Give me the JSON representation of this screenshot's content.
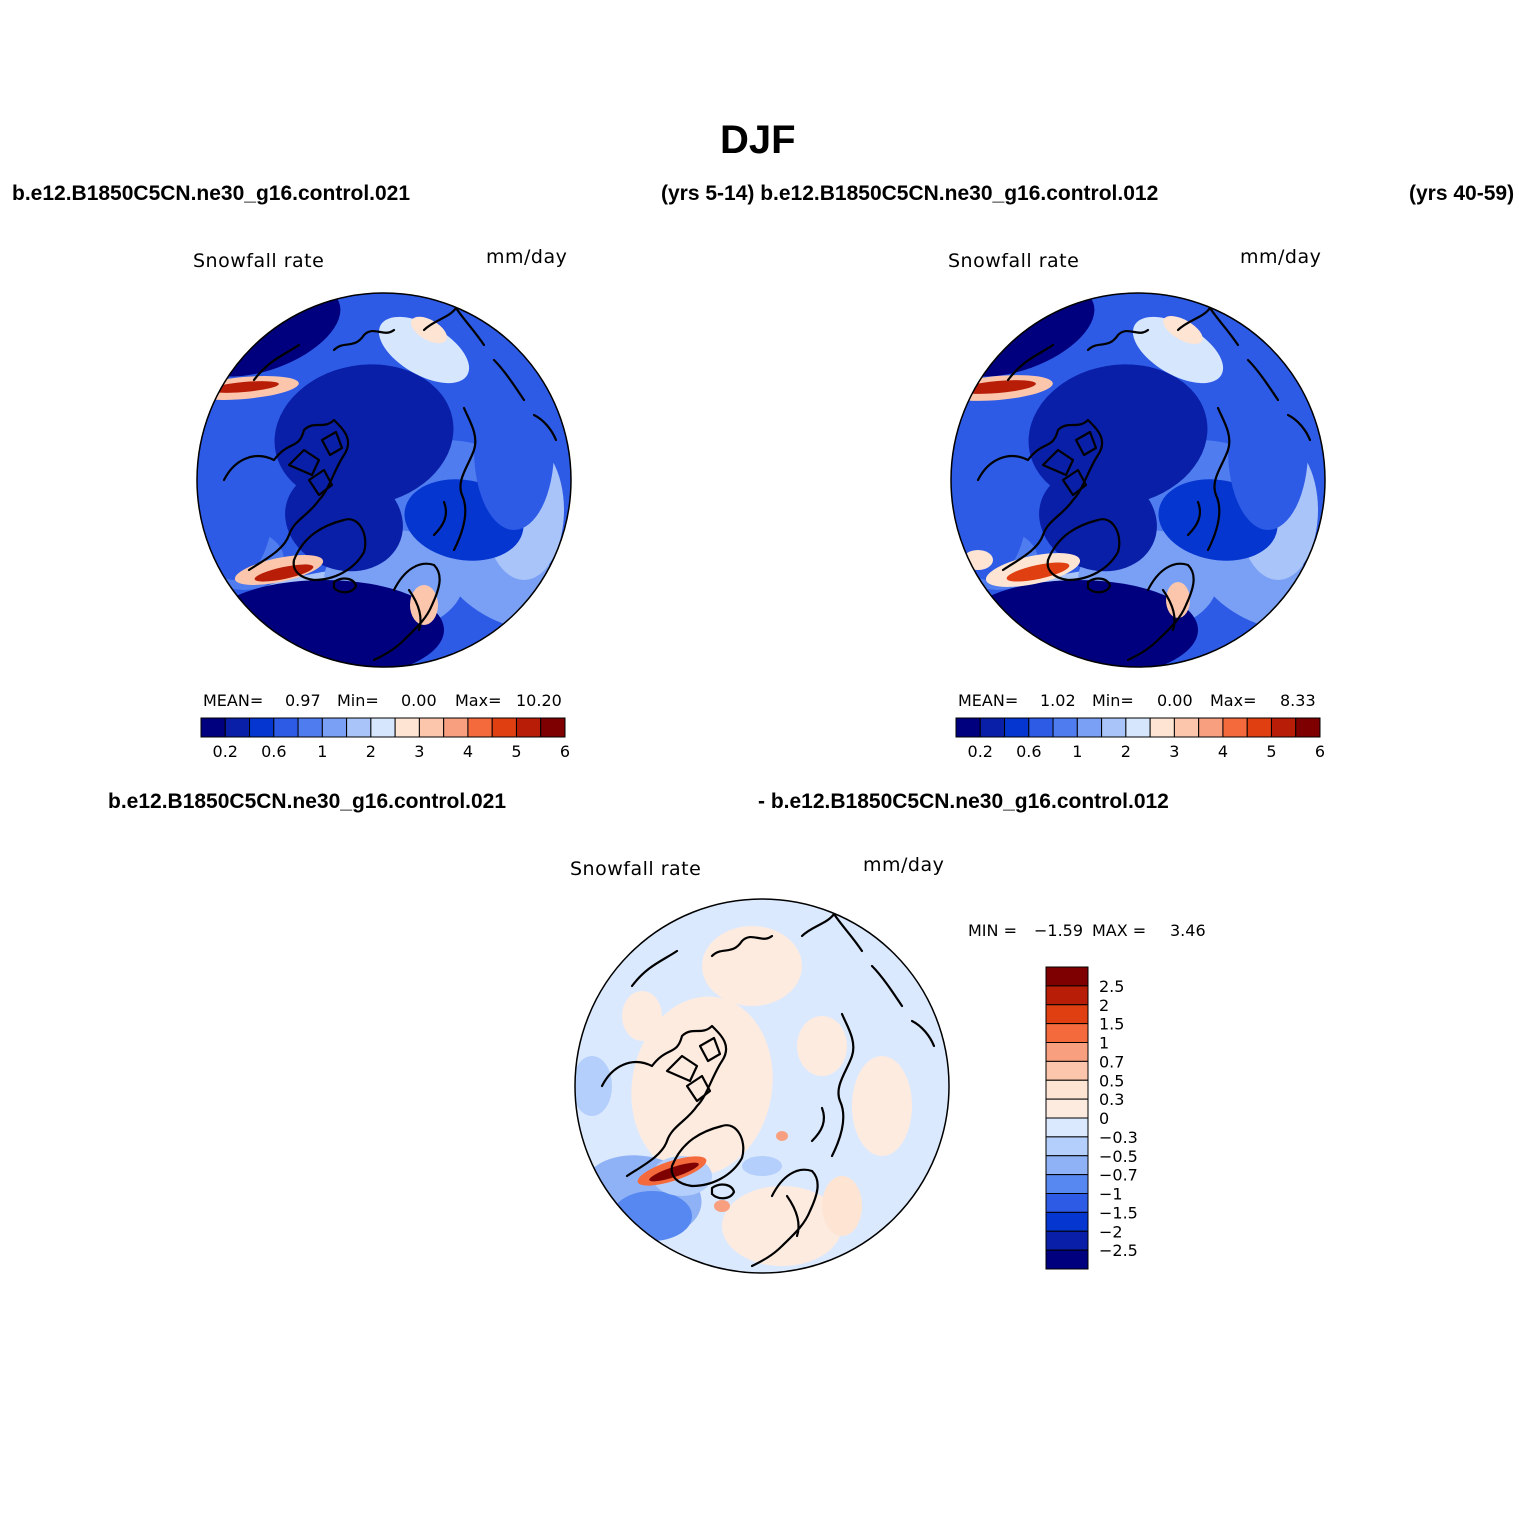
{
  "figure": {
    "title": "DJF",
    "header_left": "b.e12.B1850C5CN.ne30_g16.control.021",
    "header_center": "(yrs 5-14) b.e12.B1850C5CN.ne30_g16.control.012",
    "header_right": "(yrs 40-59)",
    "diff_header_left": "b.e12.B1850C5CN.ne30_g16.control.021",
    "diff_header_right": "- b.e12.B1850C5CN.ne30_g16.control.012"
  },
  "colors": {
    "map_background": "#1f4fd8",
    "coast": "#000000"
  },
  "chart_data": [
    {
      "type": "heatmap",
      "id": "case1",
      "projection": "north-polar-stereographic",
      "variable": "Snowfall rate",
      "units": "mm/day",
      "stats": {
        "mean_label": "MEAN=",
        "mean": "0.97",
        "min_label": "Min=",
        "min": "0.00",
        "max_label": "Max=",
        "max": "10.20"
      },
      "levels": [
        0.2,
        0.4,
        0.6,
        0.8,
        1,
        1.5,
        2,
        2.5,
        3,
        3.5,
        4,
        4.5,
        5,
        5.5,
        6
      ],
      "tick_labels": [
        "0.2",
        "0.6",
        "1",
        "2",
        "3",
        "4",
        "5",
        "6"
      ],
      "palette": [
        "#00007f",
        "#0a1fa8",
        "#0536d0",
        "#2d5be6",
        "#4f7cef",
        "#7aa0f5",
        "#a9c4f9",
        "#d6e6fd",
        "#fde4d3",
        "#fcc6ad",
        "#f89f7f",
        "#f46a3c",
        "#e03f12",
        "#b81e07",
        "#7f0000"
      ]
    },
    {
      "type": "heatmap",
      "id": "case2",
      "projection": "north-polar-stereographic",
      "variable": "Snowfall rate",
      "units": "mm/day",
      "stats": {
        "mean_label": "MEAN=",
        "mean": "1.02",
        "min_label": "Min=",
        "min": "0.00",
        "max_label": "Max=",
        "max": "8.33"
      },
      "levels": [
        0.2,
        0.4,
        0.6,
        0.8,
        1,
        1.5,
        2,
        2.5,
        3,
        3.5,
        4,
        4.5,
        5,
        5.5,
        6
      ],
      "tick_labels": [
        "0.2",
        "0.6",
        "1",
        "2",
        "3",
        "4",
        "5",
        "6"
      ],
      "palette": [
        "#00007f",
        "#0a1fa8",
        "#0536d0",
        "#2d5be6",
        "#4f7cef",
        "#7aa0f5",
        "#a9c4f9",
        "#d6e6fd",
        "#fde4d3",
        "#fcc6ad",
        "#f89f7f",
        "#f46a3c",
        "#e03f12",
        "#b81e07",
        "#7f0000"
      ]
    },
    {
      "type": "heatmap",
      "id": "difference",
      "projection": "north-polar-stereographic",
      "variable": "Snowfall rate",
      "units": "mm/day",
      "stats": {
        "min_label": "MIN =",
        "min": "−1.59",
        "max_label": "MAX =",
        "max": "3.46"
      },
      "levels": [
        2.5,
        2,
        1.5,
        1,
        0.7,
        0.5,
        0.3,
        0,
        -0.3,
        -0.5,
        -0.7,
        -1,
        -1.5,
        -2,
        -2.5
      ],
      "tick_labels": [
        "2.5",
        "2",
        "1.5",
        "1",
        "0.7",
        "0.5",
        "0.3",
        "0",
        "−0.3",
        "−0.5",
        "−0.7",
        "−1",
        "−1.5",
        "−2",
        "−2.5"
      ],
      "palette": [
        "#7f0000",
        "#b81e07",
        "#e03f12",
        "#f46a3c",
        "#f89f7f",
        "#fcc6ad",
        "#fde4d3",
        "#fdebe0",
        "#dbe9fe",
        "#b4cffb",
        "#8fb2f7",
        "#5787f0",
        "#2d5be6",
        "#0536d0",
        "#0a1fa8",
        "#00007f"
      ]
    }
  ]
}
